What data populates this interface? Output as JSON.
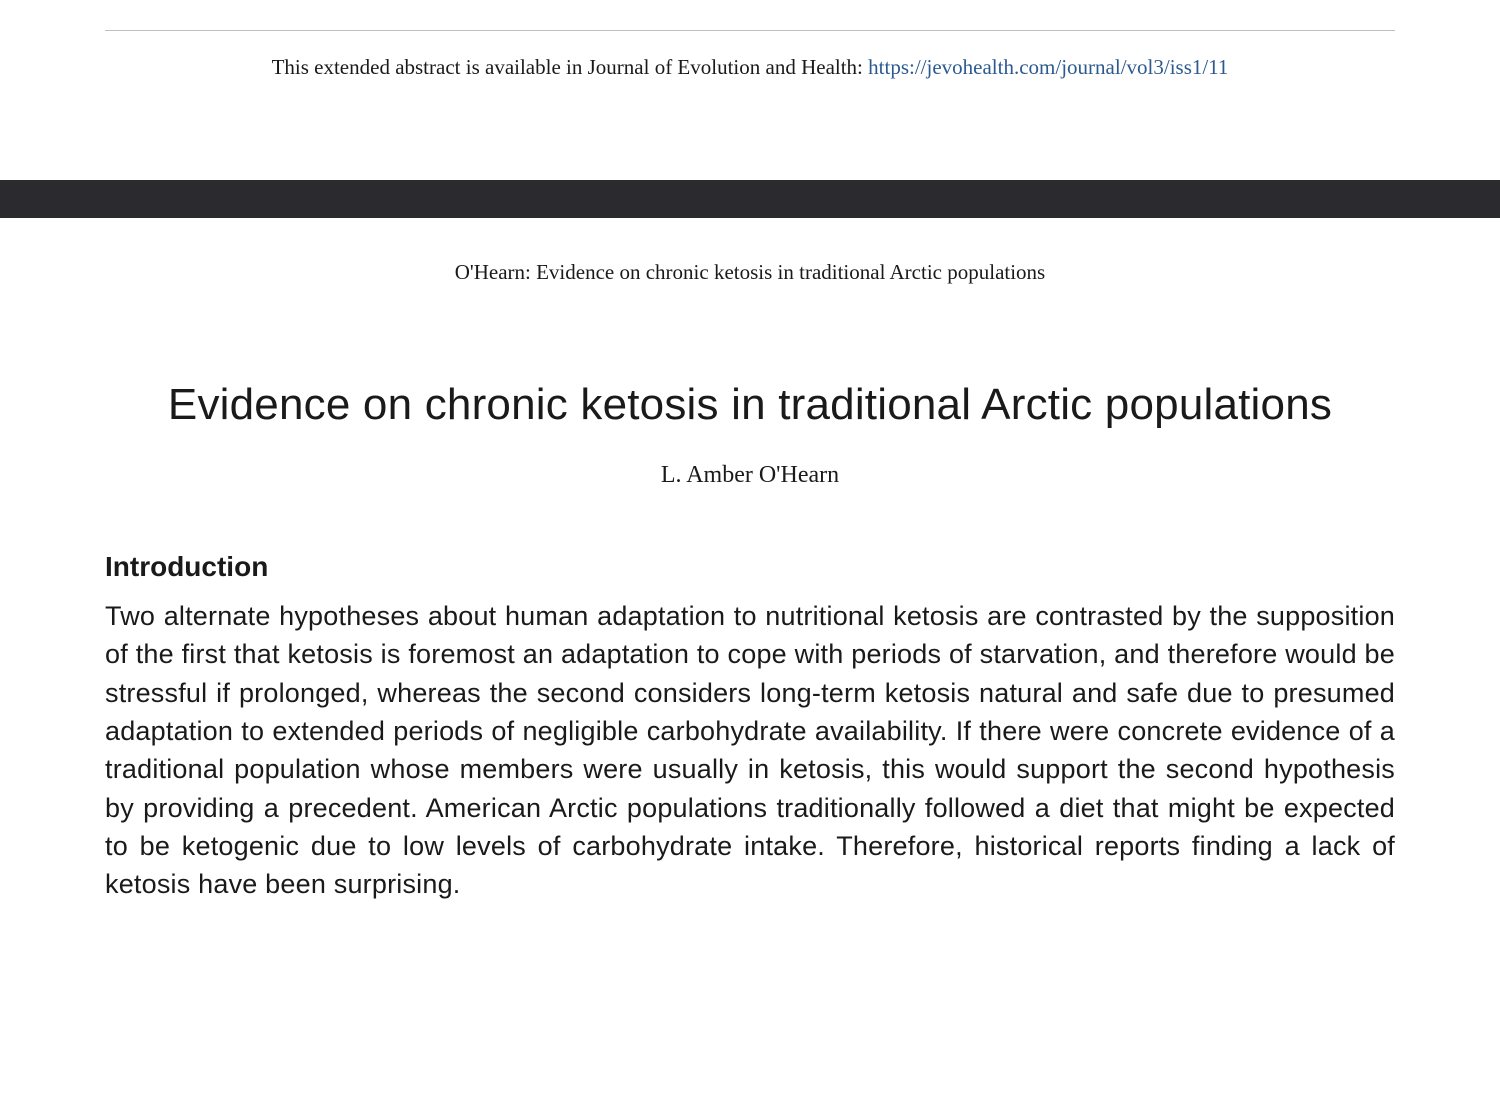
{
  "availability": {
    "prefix": "This extended abstract is available in Journal of Evolution and Health: ",
    "link_text": "https://jevohealth.com/journal/vol3/iss1/11",
    "link_color": "#2c5a8f"
  },
  "running_head": "O'Hearn: Evidence on chronic ketosis in traditional Arctic populations",
  "article": {
    "title": "Evidence on chronic ketosis in traditional Arctic populations",
    "author": "L. Amber O'Hearn",
    "section_heading": "Introduction",
    "body": "Two alternate hypotheses about human adaptation to nutritional ketosis are contrasted by the supposition of the first that ketosis is foremost an adaptation to cope with periods of starvation, and therefore would be stressful if prolonged, whereas the second considers long-term ketosis natural and safe due to presumed adaptation to extended periods of negligible carbohydrate availability. If there were concrete evidence of a traditional population whose members were usually in ketosis, this would support the second hypothesis by providing a precedent. American Arctic populations traditionally followed a diet that might be expected to be ketogenic due to low levels of carbohydrate intake. Therefore, historical reports finding a lack of ketosis have been surprising."
  },
  "styling": {
    "background_color": "#ffffff",
    "dark_band_color": "#2b2b2f",
    "divider_color": "#c0c0c0",
    "text_color": "#1a1a1a",
    "title_fontsize": 44,
    "author_fontsize": 24,
    "heading_fontsize": 28,
    "body_fontsize": 27,
    "availability_fontsize": 21,
    "running_head_fontsize": 21
  }
}
